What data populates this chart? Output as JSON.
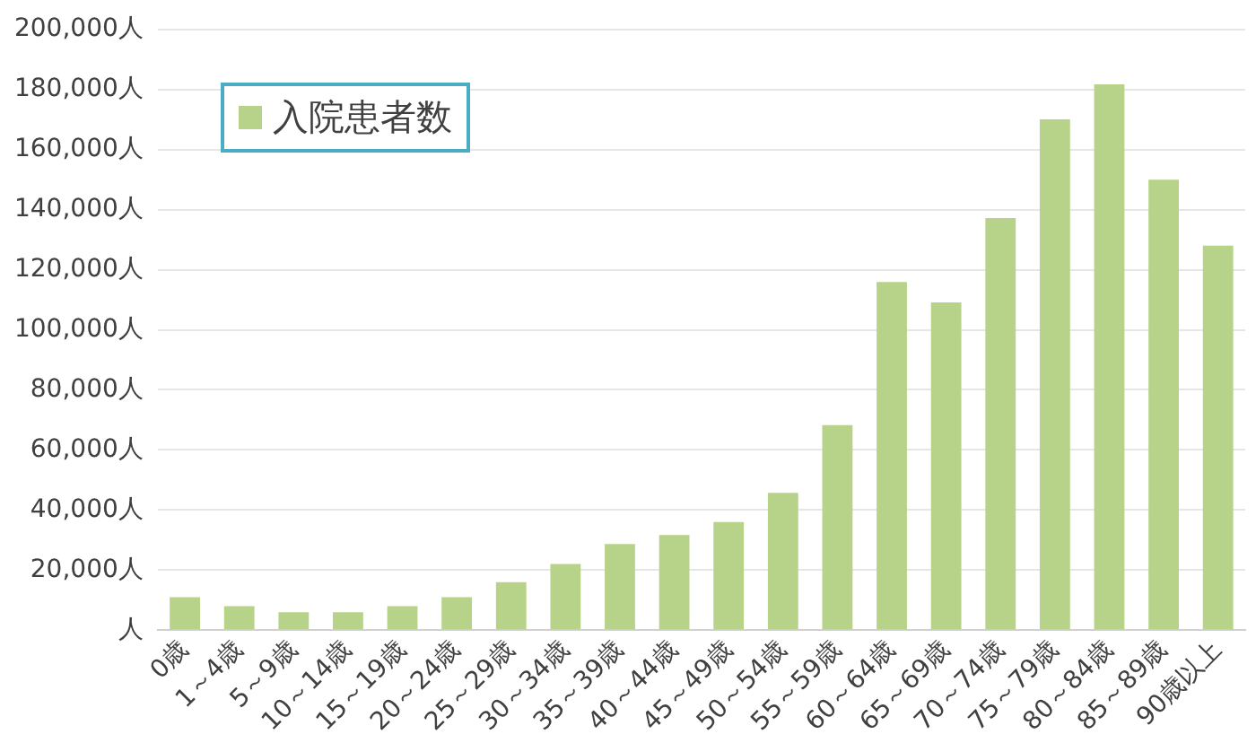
{
  "chart_data": {
    "type": "bar",
    "categories": [
      "0歳",
      "1～4歳",
      "5～9歳",
      "10～14歳",
      "15～19歳",
      "20～24歳",
      "25～29歳",
      "30～34歳",
      "35～39歳",
      "40～44歳",
      "45～49歳",
      "50～54歳",
      "55～59歳",
      "60～64歳",
      "65～69歳",
      "70～74歳",
      "75～79歳",
      "80～84歳",
      "85～89歳",
      "90歳以上"
    ],
    "series": [
      {
        "name": "入院患者数",
        "color": "#b7d38a",
        "values": [
          11000,
          8000,
          6000,
          6000,
          8000,
          11000,
          16000,
          22000,
          28700,
          31700,
          36000,
          45700,
          68300,
          115900,
          109100,
          137200,
          170100,
          181700,
          150000,
          128000
        ]
      }
    ],
    "ylim": [
      0,
      200000
    ],
    "yticks": [
      {
        "value": 0,
        "label": "人"
      },
      {
        "value": 20000,
        "label": "20,000人"
      },
      {
        "value": 40000,
        "label": "40,000人"
      },
      {
        "value": 60000,
        "label": "60,000人"
      },
      {
        "value": 80000,
        "label": "80,000人"
      },
      {
        "value": 100000,
        "label": "100,000人"
      },
      {
        "value": 120000,
        "label": "120,000人"
      },
      {
        "value": 140000,
        "label": "140,000人"
      },
      {
        "value": 160000,
        "label": "160,000人"
      },
      {
        "value": 180000,
        "label": "180,000人"
      },
      {
        "value": 200000,
        "label": "200,000人"
      }
    ],
    "grid": "y",
    "legend": "top left"
  }
}
